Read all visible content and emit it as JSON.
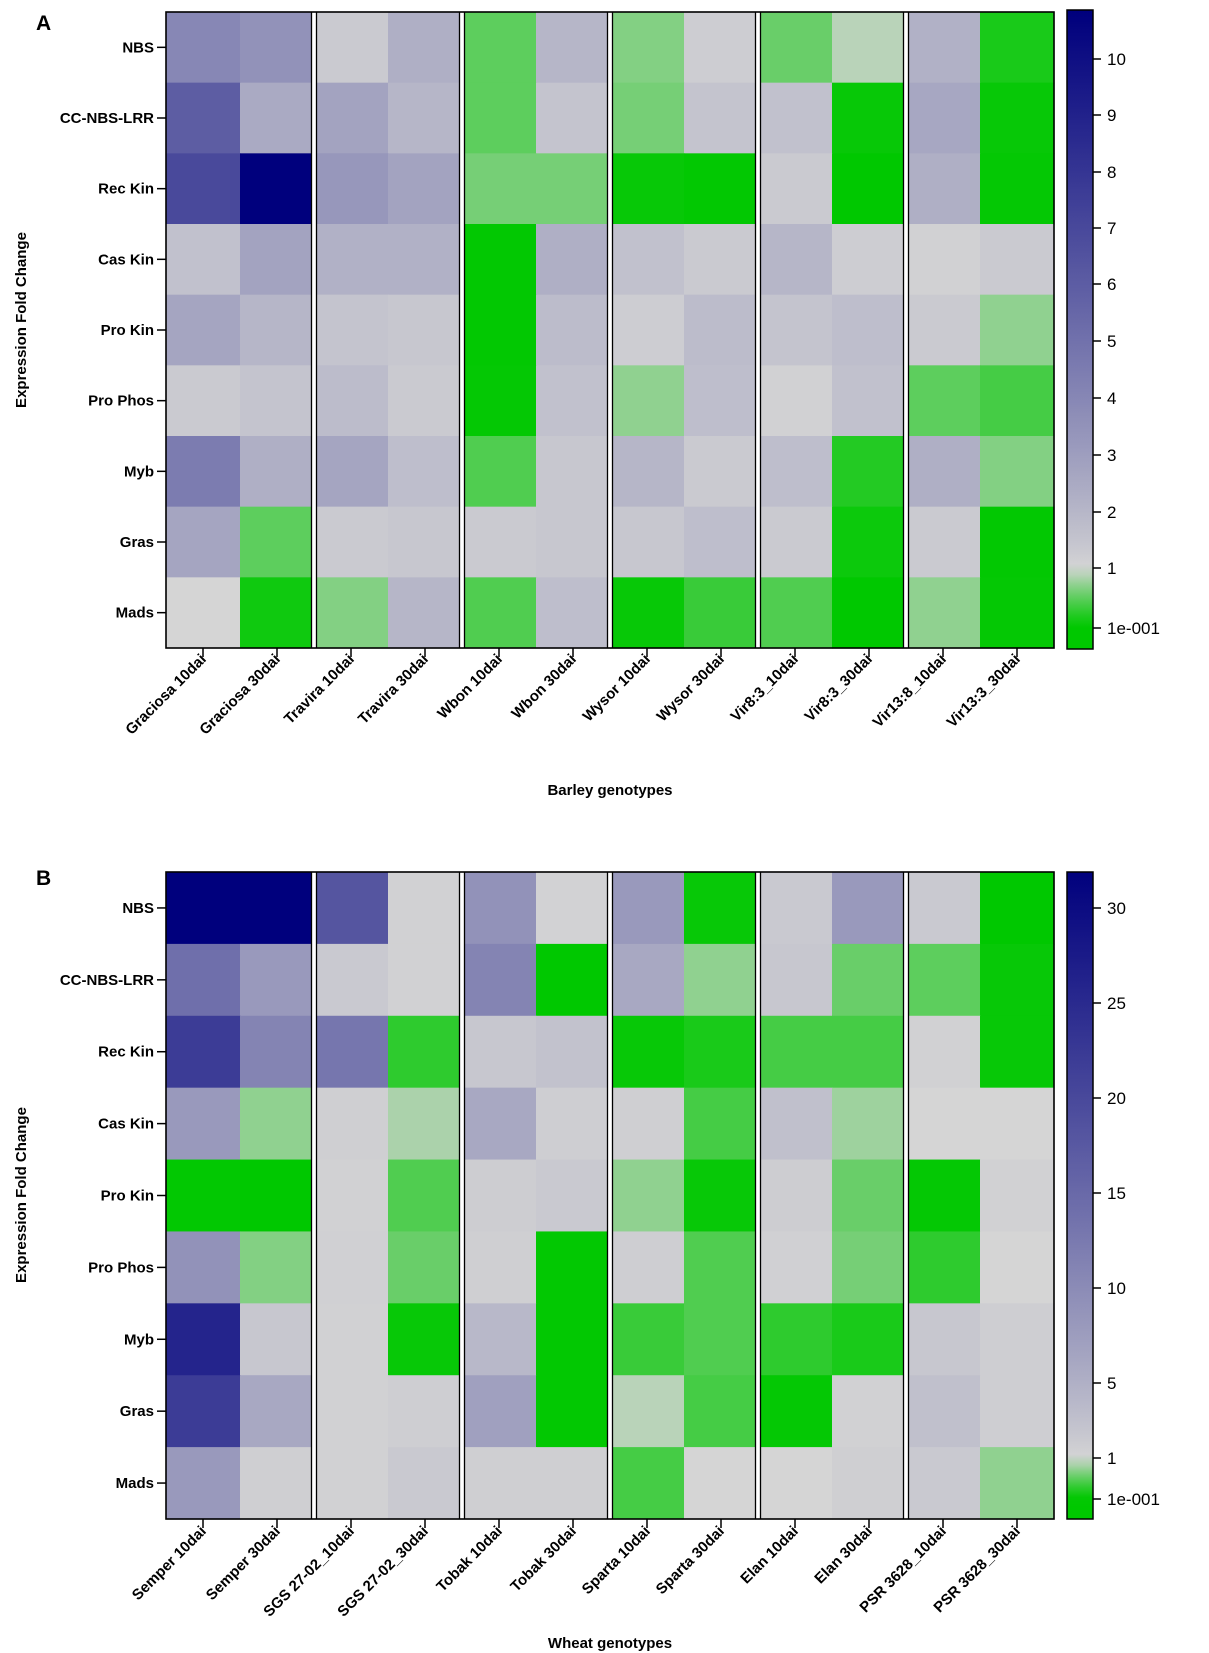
{
  "chart_data": [
    {
      "type": "heatmap",
      "panel_label": "A",
      "xlabel": "Barley genotypes",
      "ylabel": "Expression Fold Change",
      "rows": [
        "NBS",
        "CC-NBS-LRR",
        "Rec Kin",
        "Cas Kin",
        "Pro Kin",
        "Pro Phos",
        "Myb",
        "Gras",
        "Mads"
      ],
      "columns": [
        "Graciosa 10dai",
        "Graciosa 30dai",
        "Travira 10dai",
        "Travira 30dai",
        "Wbon 10dai",
        "Wbon 30dai",
        "Wysor 10dai",
        "Wysor 30dai",
        "Vir8:3_10dai",
        "Vir8:3_30dai",
        "Vir13:8_10dai",
        "Vir13:3_30dai"
      ],
      "values": [
        [
          4.0,
          3.5,
          1.3,
          2.3,
          0.55,
          2.0,
          0.7,
          1.2,
          0.6,
          0.9,
          2.2,
          0.25
        ],
        [
          6.0,
          2.5,
          2.8,
          2.0,
          0.55,
          1.5,
          0.65,
          1.5,
          1.6,
          0.15,
          2.6,
          0.15
        ],
        [
          7.0,
          10.8,
          3.3,
          2.8,
          0.65,
          0.65,
          0.15,
          0.12,
          1.3,
          0.1,
          2.3,
          0.13
        ],
        [
          1.6,
          2.8,
          2.2,
          2.2,
          0.12,
          2.3,
          1.6,
          1.3,
          2.0,
          1.2,
          1.1,
          1.3
        ],
        [
          2.7,
          2.0,
          1.5,
          1.4,
          0.12,
          1.8,
          1.2,
          1.8,
          1.5,
          1.7,
          1.3,
          0.75
        ],
        [
          1.3,
          1.5,
          1.8,
          1.3,
          0.13,
          1.6,
          0.75,
          1.7,
          1.1,
          1.6,
          0.55,
          0.45
        ],
        [
          4.5,
          2.3,
          2.7,
          1.7,
          0.5,
          1.4,
          2.0,
          1.3,
          1.7,
          0.3,
          2.3,
          0.7
        ],
        [
          2.7,
          0.55,
          1.3,
          1.4,
          1.3,
          1.4,
          1.4,
          1.7,
          1.3,
          0.18,
          1.3,
          0.12
        ],
        [
          1.0,
          0.2,
          0.7,
          2.0,
          0.5,
          1.7,
          0.15,
          0.4,
          0.5,
          0.1,
          0.75,
          0.13
        ]
      ],
      "colorbar": {
        "ticks": [
          "10",
          "9",
          "8",
          "7",
          "6",
          "5",
          "4",
          "3",
          "2",
          "1",
          "1e-001"
        ],
        "max": 10.8
      },
      "colors": {
        "low": "#00c800",
        "mid": "#d5d5d5",
        "high": "#00007d"
      }
    },
    {
      "type": "heatmap",
      "panel_label": "B",
      "xlabel": "Wheat genotypes",
      "ylabel": "Expression Fold Change",
      "rows": [
        "NBS",
        "CC-NBS-LRR",
        "Rec Kin",
        "Cas Kin",
        "Pro Kin",
        "Pro Phos",
        "Myb",
        "Gras",
        "Mads"
      ],
      "columns": [
        "Semper 10dai",
        "Semper 30dai",
        "SGS 27-02_10dai",
        "SGS 27-02_30dai",
        "Tobak 10dai",
        "Tobak 30dai",
        "Sparta 10dai",
        "Sparta 30dai",
        "Elan 10dai",
        "Elan 30dai",
        "PSR 3628_10dai",
        "PSR 3628_30dai"
      ],
      "values": [
        [
          32,
          32,
          18,
          1.3,
          9,
          1.2,
          8,
          0.15,
          2.0,
          8,
          2.0,
          0.1
        ],
        [
          14,
          8,
          2.0,
          1.3,
          11,
          0.1,
          6,
          0.75,
          2.3,
          0.6,
          0.55,
          0.15
        ],
        [
          22,
          11,
          13,
          0.35,
          2.3,
          2.8,
          0.15,
          0.25,
          0.45,
          0.45,
          1.3,
          0.15
        ],
        [
          8,
          0.75,
          1.5,
          0.85,
          6,
          1.6,
          1.5,
          0.45,
          3.0,
          0.8,
          1.0,
          1.0
        ],
        [
          0.12,
          0.1,
          1.3,
          0.5,
          1.7,
          2.0,
          0.75,
          0.15,
          1.7,
          0.6,
          0.13,
          1.3
        ],
        [
          9,
          0.7,
          1.4,
          0.6,
          1.5,
          0.12,
          1.6,
          0.5,
          1.4,
          0.65,
          0.35,
          1.0
        ],
        [
          26,
          2.3,
          1.3,
          0.15,
          4,
          0.12,
          0.4,
          0.5,
          0.35,
          0.25,
          2.3,
          1.6
        ],
        [
          22,
          6,
          1.3,
          1.6,
          7,
          0.12,
          0.9,
          0.45,
          0.13,
          1.3,
          3.0,
          1.6
        ],
        [
          8,
          1.5,
          1.3,
          2.0,
          1.5,
          1.5,
          0.45,
          1.0,
          1.0,
          1.5,
          2.0,
          0.75
        ]
      ],
      "colorbar": {
        "ticks": [
          "30",
          "25",
          "20",
          "15",
          "10",
          "5",
          "1",
          "1e-001"
        ],
        "max": 32
      },
      "colors": {
        "low": "#00c800",
        "mid": "#d5d5d5",
        "high": "#00007d"
      }
    }
  ]
}
